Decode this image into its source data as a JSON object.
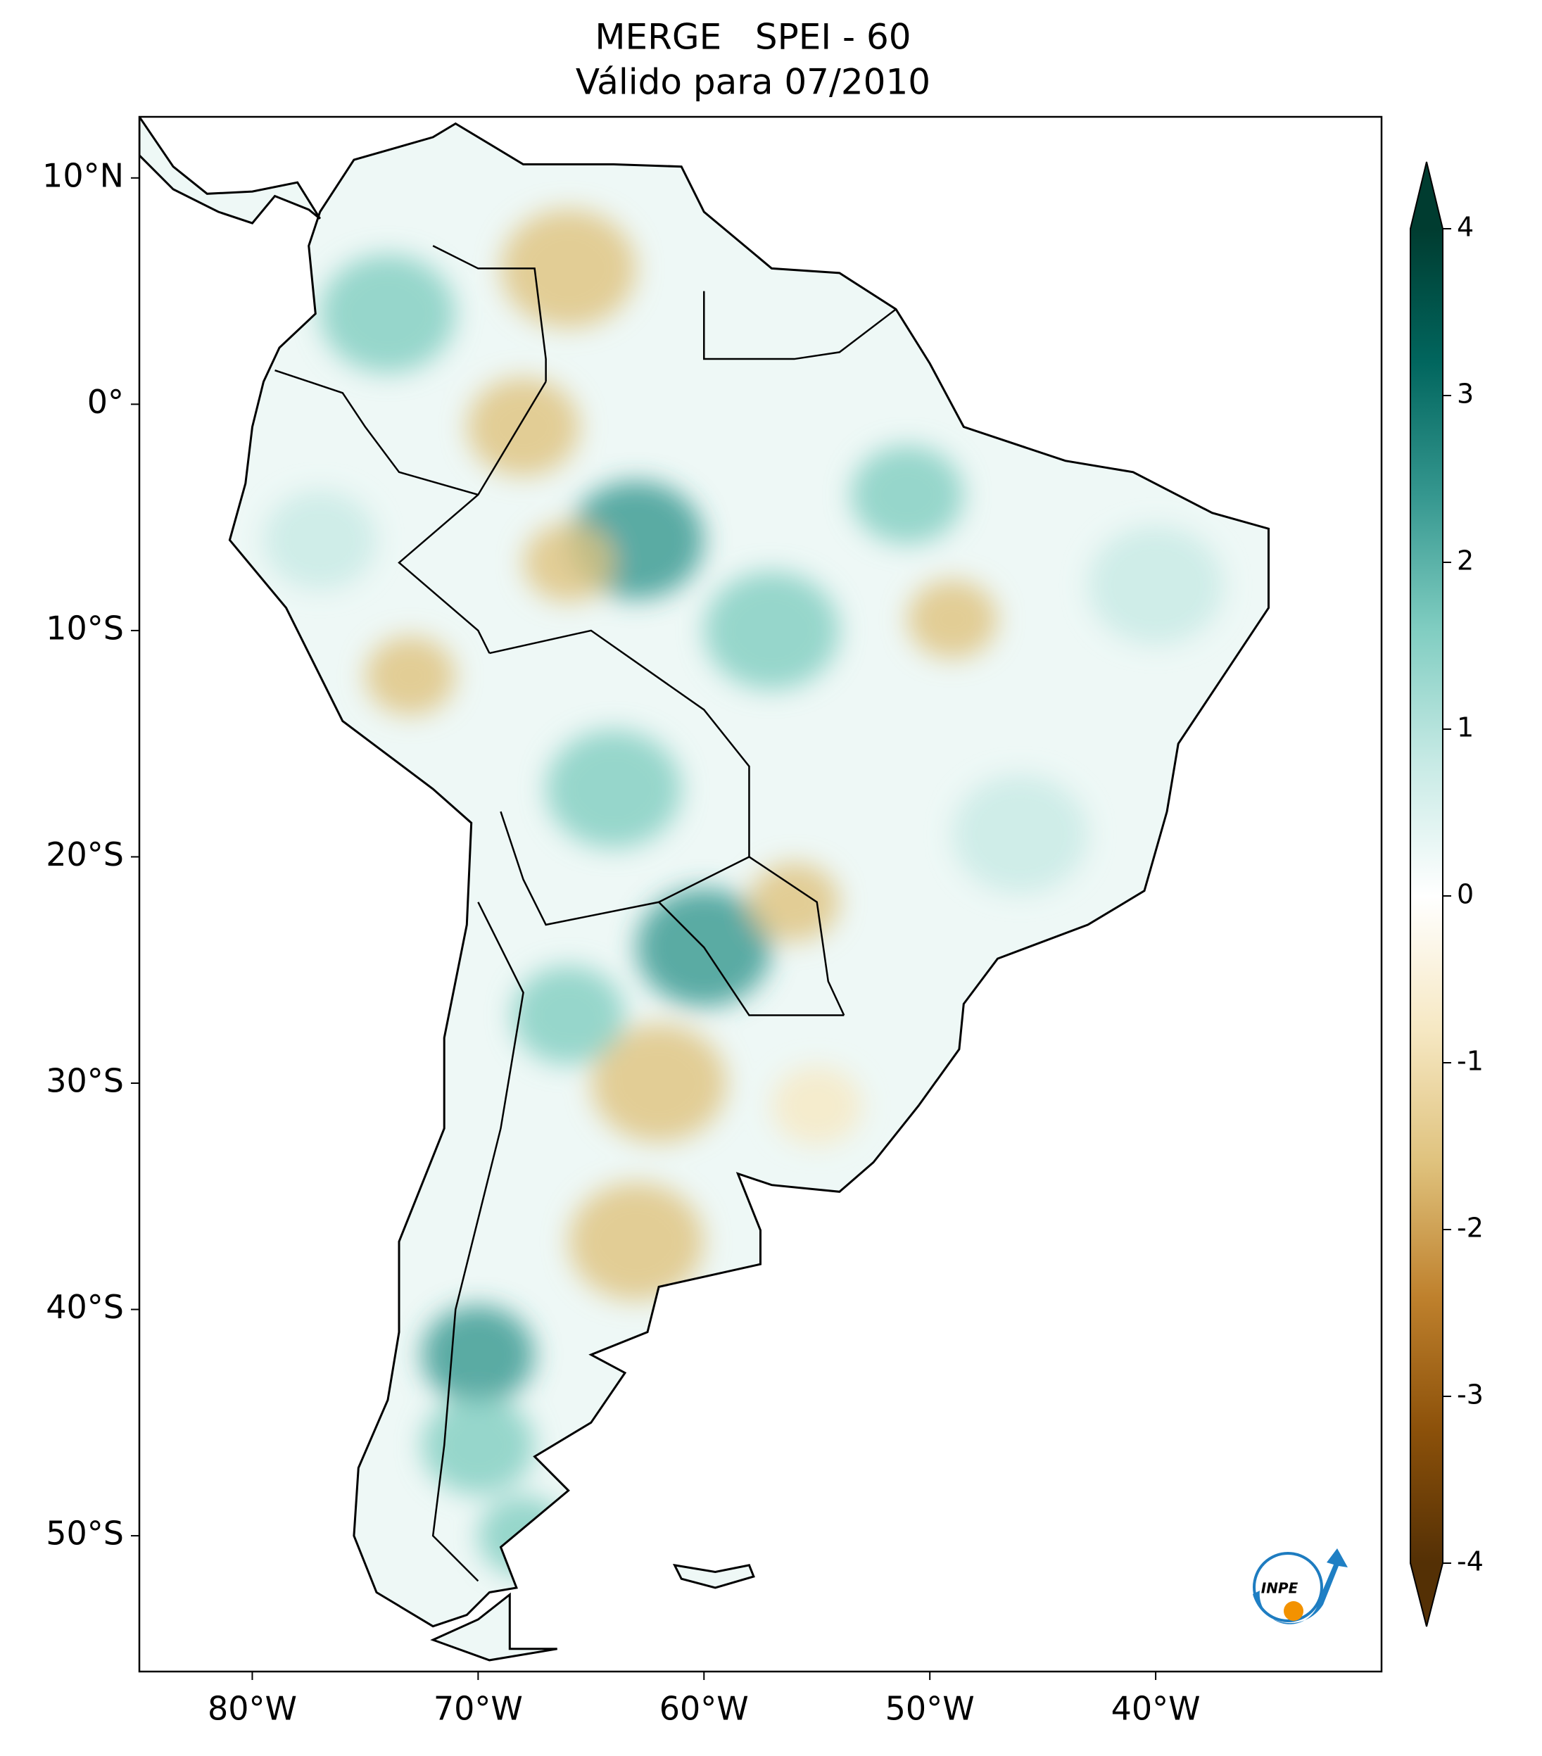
{
  "title": [
    "MERGE   SPEI - 60",
    "Válido para 07/2010"
  ],
  "map": {
    "xlim": [
      -85,
      -30
    ],
    "ylim": [
      -56,
      12.7
    ],
    "xticks": [
      {
        "value": -80,
        "label": "80°W"
      },
      {
        "value": -70,
        "label": "70°W"
      },
      {
        "value": -60,
        "label": "60°W"
      },
      {
        "value": -50,
        "label": "50°W"
      },
      {
        "value": -40,
        "label": "40°W"
      }
    ],
    "yticks": [
      {
        "value": 10,
        "label": "10°N"
      },
      {
        "value": 0,
        "label": "0°"
      },
      {
        "value": -10,
        "label": "10°S"
      },
      {
        "value": -20,
        "label": "20°S"
      },
      {
        "value": -30,
        "label": "30°S"
      },
      {
        "value": -40,
        "label": "40°S"
      },
      {
        "value": -50,
        "label": "50°S"
      }
    ]
  },
  "colorbar": {
    "clim": [
      -4,
      4
    ],
    "ticks": [
      4,
      3,
      2,
      1,
      0,
      -1,
      -2,
      -3,
      -4
    ]
  },
  "logo": "INPE"
}
